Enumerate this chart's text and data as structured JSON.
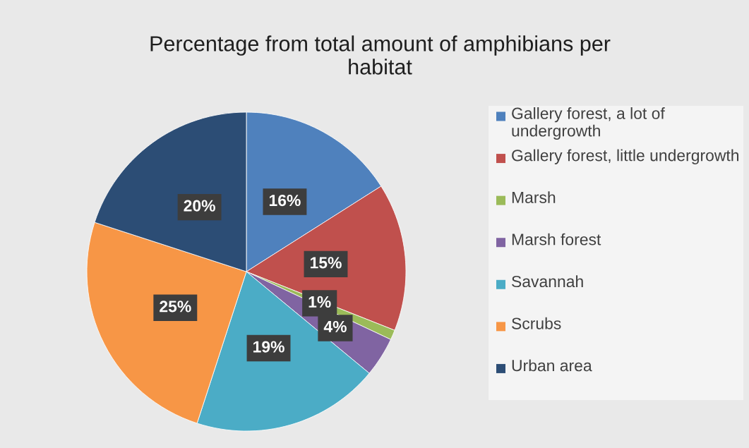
{
  "chart_data": {
    "type": "pie",
    "title": "Percentage from total amount of amphibians per\nhabitat",
    "categories": [
      "Gallery forest, a lot of undergrowth",
      "Gallery forest, little undergrowth",
      "Marsh",
      "Marsh forest",
      "Savannah",
      "Scrubs",
      "Urban area"
    ],
    "values": [
      16,
      15,
      1,
      4,
      19,
      25,
      20
    ],
    "colors": [
      "#4f81bd",
      "#c0504d",
      "#9bbb59",
      "#8064a2",
      "#4bacc6",
      "#f79646",
      "#2c4d75"
    ],
    "value_labels": [
      "16%",
      "15%",
      "1%",
      "4%",
      "19%",
      "25%",
      "20%"
    ],
    "legend": "right"
  }
}
